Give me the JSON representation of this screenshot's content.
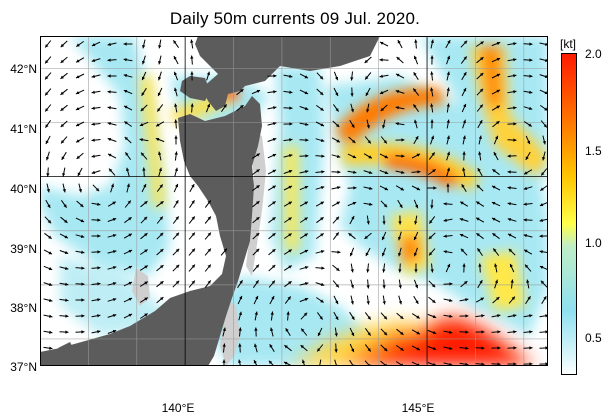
{
  "map": {
    "title": "Daily 50m currents 09 Jul. 2020.",
    "lat_labels": [
      "42°N",
      "41°N",
      "40°N",
      "39°N",
      "38°N",
      "37°N"
    ],
    "lon_labels": [
      "140°E",
      "145°E"
    ],
    "lat_range": [
      36.5,
      42.6
    ],
    "lon_range": [
      137.0,
      147.5
    ],
    "colorbar": {
      "unit": "[kt]",
      "labels": [
        "2.0",
        "1.5",
        "1.0",
        "0.5"
      ],
      "range": [
        0.2,
        2.0
      ],
      "colors": [
        "#ffffff",
        "#b8ecf4",
        "#8fe0ef",
        "#ffff4a",
        "#ffc400",
        "#ff7a00",
        "#ff1a00"
      ]
    },
    "colors": {
      "land": "#5c5c5c",
      "shelf": "#cfcfcf",
      "frame": "#000000",
      "grid": "#9a9a9a",
      "arrow": "#000000"
    }
  }
}
